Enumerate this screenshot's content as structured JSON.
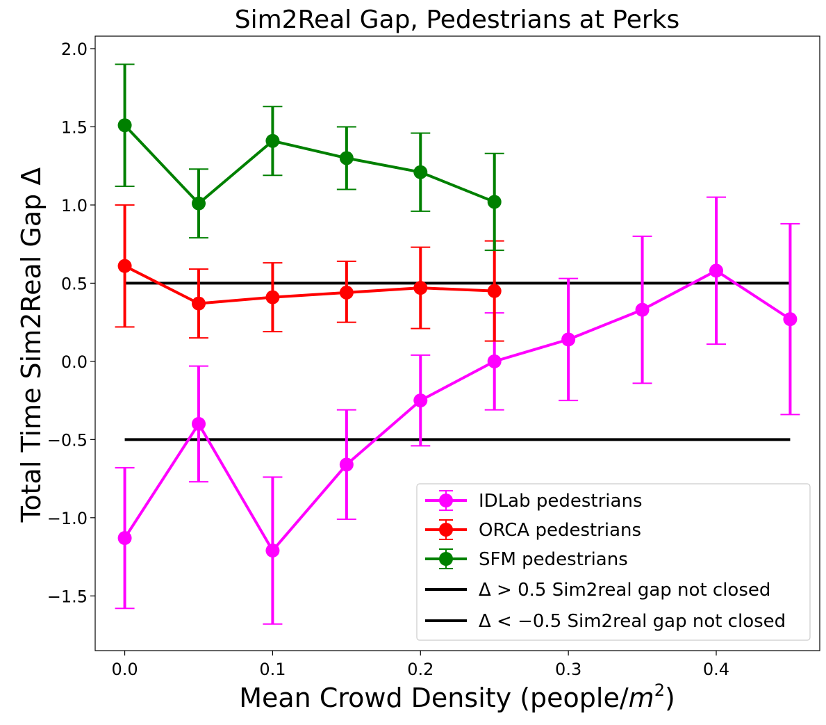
{
  "chart_data": {
    "type": "line",
    "title": "Sim2Real Gap, Pedestrians at Perks",
    "xlabel": "Mean Crowd Density (people/",
    "xlabel_unit_base": "m",
    "xlabel_unit_exp": "2",
    "xlabel_close": ")",
    "ylabel": "Total Time Sim2Real Gap Δ",
    "xlim": [
      -0.02,
      0.47
    ],
    "ylim": [
      -1.85,
      2.08
    ],
    "xticks": [
      0.0,
      0.1,
      0.2,
      0.3,
      0.4
    ],
    "xtick_labels": [
      "0.0",
      "0.1",
      "0.2",
      "0.3",
      "0.4"
    ],
    "yticks": [
      -1.5,
      -1.0,
      -0.5,
      0.0,
      0.5,
      1.0,
      1.5,
      2.0
    ],
    "ytick_labels": [
      "−1.5",
      "−1.0",
      "−0.5",
      "0.0",
      "0.5",
      "1.0",
      "1.5",
      "2.0"
    ],
    "grid": false,
    "legend_position": "lower-right",
    "series": [
      {
        "name": "IDLab pedestrians",
        "color": "#ff00ff",
        "x": [
          0.0,
          0.05,
          0.1,
          0.15,
          0.2,
          0.25,
          0.3,
          0.35,
          0.4,
          0.45
        ],
        "y": [
          -1.13,
          -0.4,
          -1.21,
          -0.66,
          -0.25,
          0.0,
          0.14,
          0.33,
          0.58,
          0.27
        ],
        "err_low": [
          -1.58,
          -0.77,
          -1.68,
          -1.01,
          -0.54,
          -0.31,
          -0.25,
          -0.14,
          0.11,
          -0.34
        ],
        "err_high": [
          -0.68,
          -0.03,
          -0.74,
          -0.31,
          0.04,
          0.31,
          0.53,
          0.8,
          1.05,
          0.88
        ]
      },
      {
        "name": "ORCA pedestrians",
        "color": "#ff0000",
        "x": [
          0.0,
          0.05,
          0.1,
          0.15,
          0.2,
          0.25
        ],
        "y": [
          0.61,
          0.37,
          0.41,
          0.44,
          0.47,
          0.45
        ],
        "err_low": [
          0.22,
          0.15,
          0.19,
          0.25,
          0.21,
          0.13
        ],
        "err_high": [
          1.0,
          0.59,
          0.63,
          0.64,
          0.73,
          0.77
        ]
      },
      {
        "name": "SFM pedestrians",
        "color": "#008000",
        "x": [
          0.0,
          0.05,
          0.1,
          0.15,
          0.2,
          0.25
        ],
        "y": [
          1.51,
          1.01,
          1.41,
          1.3,
          1.21,
          1.02
        ],
        "err_low": [
          1.12,
          0.79,
          1.19,
          1.1,
          0.96,
          0.71
        ],
        "err_high": [
          1.9,
          1.23,
          1.63,
          1.5,
          1.46,
          1.33
        ]
      }
    ],
    "hlines": [
      {
        "y": 0.5,
        "x_range": [
          0.0,
          0.45
        ],
        "color": "#000000",
        "label_prefix": "Δ > 0.5",
        "label_rest": " Sim2real gap not closed"
      },
      {
        "y": -0.5,
        "x_range": [
          0.0,
          0.45
        ],
        "color": "#000000",
        "label_prefix": "Δ < −0.5",
        "label_rest": " Sim2real gap not closed"
      }
    ]
  }
}
